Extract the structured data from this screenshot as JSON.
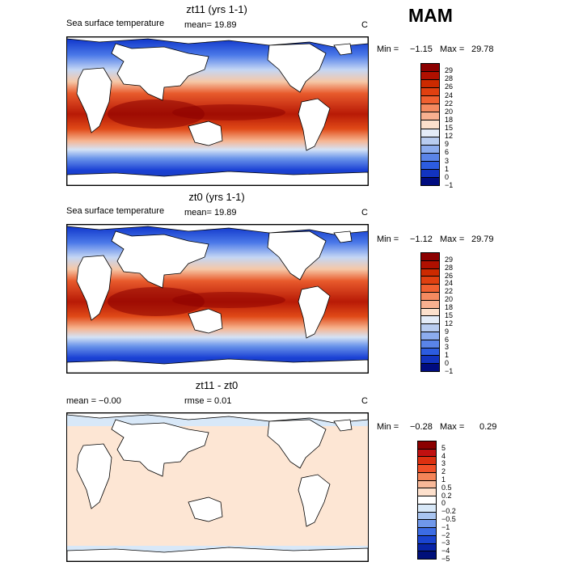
{
  "season": "MAM",
  "units": "C",
  "panels": [
    {
      "title": "zt11 (yrs 1-1)",
      "variable": "Sea surface temperature",
      "mean_text": "mean=   19.89",
      "rmse_text": "",
      "min_label": "Min =",
      "min_value": "−1.15",
      "max_label": "Max =",
      "max_value": "29.78",
      "colorbar_labels": [
        "29",
        "28",
        "26",
        "24",
        "22",
        "20",
        "18",
        "15",
        "12",
        "9",
        "6",
        "3",
        "1",
        "0",
        "−1"
      ]
    },
    {
      "title": "zt0 (yrs 1-1)",
      "variable": "Sea surface temperature",
      "mean_text": "mean=   19.89",
      "rmse_text": "",
      "min_label": "Min =",
      "min_value": "−1.12",
      "max_label": "Max =",
      "max_value": "29.79",
      "colorbar_labels": [
        "29",
        "28",
        "26",
        "24",
        "22",
        "20",
        "18",
        "15",
        "12",
        "9",
        "6",
        "3",
        "1",
        "0",
        "−1"
      ]
    },
    {
      "title": "zt11 - zt0",
      "variable": "",
      "mean_text": "mean =   −0.00",
      "rmse_text": "rmse =    0.01",
      "min_label": "Min =",
      "min_value": "−0.28",
      "max_label": "Max =",
      "max_value": "0.29",
      "colorbar_labels": [
        "5",
        "4",
        "3",
        "2",
        "1",
        "0.5",
        "0.2",
        "0",
        "−0.2",
        "−0.5",
        "−1",
        "−2",
        "−3",
        "−4",
        "−5"
      ]
    }
  ],
  "colors": {
    "sst_scale": [
      "#8b0000",
      "#b01000",
      "#cc2a00",
      "#e04010",
      "#f06030",
      "#f48a60",
      "#f8b090",
      "#fce0cc",
      "#e4ecf8",
      "#b8ccf0",
      "#8cacee",
      "#5a84e8",
      "#2c5ce0",
      "#1234c0",
      "#000c80"
    ],
    "diff_scale": [
      "#8b0000",
      "#c01010",
      "#dc3010",
      "#f05028",
      "#f48458",
      "#f8b898",
      "#fde0cc",
      "#ffffff",
      "#d8e8f8",
      "#a8c4f0",
      "#7098ea",
      "#3c6ce4",
      "#1a44d0",
      "#0824a8",
      "#00107a"
    ],
    "land": "#ffffff",
    "diff_ocean": "#fde6d4",
    "diff_polar": "#d8e8f8"
  }
}
